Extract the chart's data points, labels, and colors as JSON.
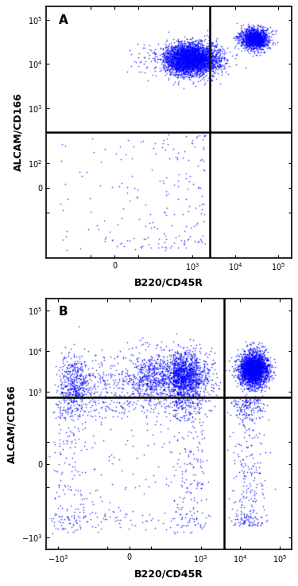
{
  "panel_A": {
    "label": "A",
    "xlabel": "B220/CD45R",
    "ylabel": "ALCAM/CD166",
    "xlim_low": -600,
    "xlim_high": 200000,
    "ylim_low": -600,
    "ylim_high": 200000,
    "linthresh_x": 200,
    "linthresh_y": 200,
    "xticks": [
      0,
      1000,
      10000,
      100000
    ],
    "yticks": [
      0,
      100,
      1000,
      10000,
      100000
    ],
    "xtick_labels": [
      "0",
      "$10^3$",
      "$10^4$",
      "$10^5$"
    ],
    "ytick_labels": [
      "0",
      "$10^2$",
      "$10^3$",
      "$10^4$",
      "$10^5$"
    ],
    "quadrant_x": 2500,
    "quadrant_y": 280
  },
  "panel_B": {
    "label": "B",
    "xlabel": "B220/CD45R",
    "ylabel": "ALCAM/CD166",
    "xlim_low": -2000,
    "xlim_high": 200000,
    "ylim_low": -2000,
    "ylim_high": 200000,
    "linthresh_x": 200,
    "linthresh_y": 200,
    "xticks": [
      -1000,
      0,
      1000,
      10000,
      100000
    ],
    "yticks": [
      -1000,
      0,
      1000,
      10000,
      100000
    ],
    "xtick_labels": [
      "$-10^3$",
      "0",
      "$10^3$",
      "$10^4$",
      "$10^5$"
    ],
    "ytick_labels": [
      "$-10^3$",
      "0",
      "$10^3$",
      "$10^4$",
      "$10^5$"
    ],
    "quadrant_x": 4000,
    "quadrant_y": 700
  },
  "dot_colors": [
    "#1a1aff",
    "#00aaff",
    "#00ee88",
    "#ffff00",
    "#ff8800",
    "#ff0000"
  ],
  "background_color": "#ffffff",
  "font_size_label": 9,
  "font_size_panel_label": 11,
  "font_size_tick": 7
}
